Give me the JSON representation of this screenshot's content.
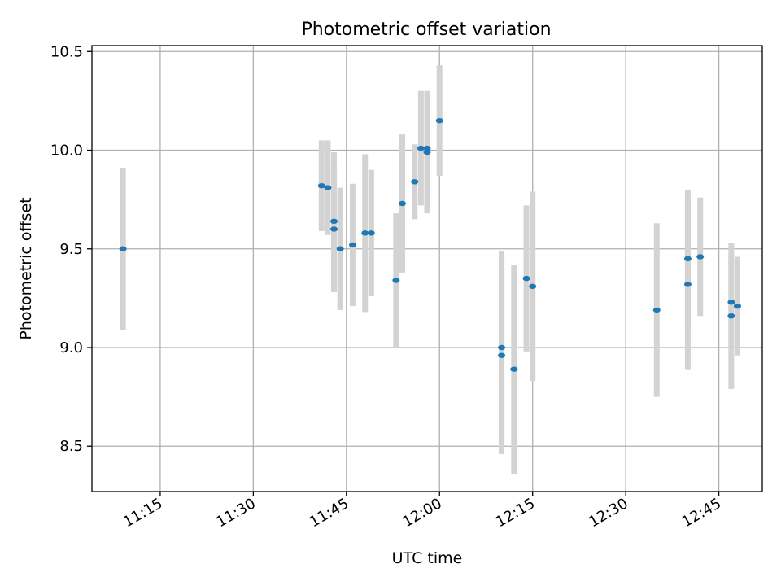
{
  "chart_data": {
    "type": "scatter",
    "title": "Photometric offset variation",
    "xlabel": "UTC time",
    "ylabel": "Photometric offset",
    "xlim": [
      "11:04",
      "12:52"
    ],
    "ylim": [
      8.27,
      10.53
    ],
    "x_ticks": [
      "11:15",
      "11:30",
      "11:45",
      "12:00",
      "12:15",
      "12:30",
      "12:45"
    ],
    "y_ticks": [
      8.5,
      9.0,
      9.5,
      10.0,
      10.5
    ],
    "grid": true,
    "colors": {
      "point": "#1f77b4",
      "errorbar": "#d3d3d3"
    },
    "points": [
      {
        "x": "11:09",
        "y": 9.5,
        "yerr": 0.41
      },
      {
        "x": "11:41",
        "y": 9.82,
        "yerr": 0.23
      },
      {
        "x": "11:42",
        "y": 9.81,
        "yerr": 0.24
      },
      {
        "x": "11:43",
        "y": 9.64,
        "yerr": 0.35
      },
      {
        "x": "11:43",
        "y": 9.6,
        "yerr": 0.32
      },
      {
        "x": "11:44",
        "y": 9.5,
        "yerr": 0.31
      },
      {
        "x": "11:46",
        "y": 9.52,
        "yerr": 0.31
      },
      {
        "x": "11:48",
        "y": 9.58,
        "yerr": 0.4
      },
      {
        "x": "11:49",
        "y": 9.58,
        "yerr": 0.32
      },
      {
        "x": "11:53",
        "y": 9.34,
        "yerr": 0.34
      },
      {
        "x": "11:54",
        "y": 9.73,
        "yerr": 0.35
      },
      {
        "x": "11:56",
        "y": 9.84,
        "yerr": 0.19
      },
      {
        "x": "11:57",
        "y": 10.01,
        "yerr": 0.29
      },
      {
        "x": "11:58",
        "y": 9.99,
        "yerr": 0.31
      },
      {
        "x": "11:58",
        "y": 10.01,
        "yerr": 0.28
      },
      {
        "x": "12:00",
        "y": 10.15,
        "yerr": 0.28
      },
      {
        "x": "12:10",
        "y": 9.0,
        "yerr": 0.49
      },
      {
        "x": "12:10",
        "y": 8.96,
        "yerr": 0.5
      },
      {
        "x": "12:12",
        "y": 8.89,
        "yerr": 0.53
      },
      {
        "x": "12:14",
        "y": 9.35,
        "yerr": 0.37
      },
      {
        "x": "12:15",
        "y": 9.31,
        "yerr": 0.48
      },
      {
        "x": "12:35",
        "y": 9.19,
        "yerr": 0.44
      },
      {
        "x": "12:40",
        "y": 9.32,
        "yerr": 0.43
      },
      {
        "x": "12:40",
        "y": 9.45,
        "yerr": 0.35
      },
      {
        "x": "12:42",
        "y": 9.46,
        "yerr": 0.3
      },
      {
        "x": "12:47",
        "y": 9.16,
        "yerr": 0.37
      },
      {
        "x": "12:47",
        "y": 9.23,
        "yerr": 0.23
      },
      {
        "x": "12:48",
        "y": 9.21,
        "yerr": 0.25
      }
    ]
  }
}
